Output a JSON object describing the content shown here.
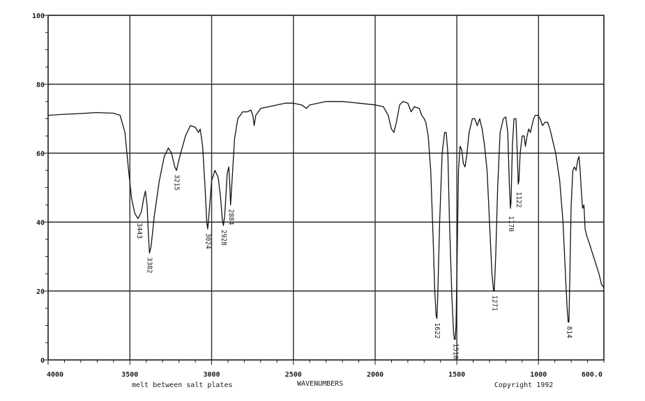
{
  "chart_data": {
    "type": "line",
    "title": "",
    "xlabel": "WAVENUMBERS",
    "ylabel": "",
    "xlim": [
      4000,
      600
    ],
    "ylim": [
      0,
      100
    ],
    "x_ticks": [
      4000,
      3500,
      3000,
      2500,
      2000,
      1500,
      1000,
      600
    ],
    "x_tick_labels": [
      "4000",
      "3500",
      "3000",
      "2500",
      "2000",
      "1500",
      "1000",
      "600.0"
    ],
    "y_ticks": [
      0,
      20,
      40,
      60,
      80,
      100
    ],
    "y_tick_labels": [
      "0",
      "20",
      "40",
      "60",
      "80",
      "100"
    ],
    "grid": true,
    "sample_note": "melt between salt plates",
    "copyright": "Copyright 1992",
    "peak_labels": [
      {
        "x": 3443,
        "y": 41,
        "text": "3443"
      },
      {
        "x": 3382,
        "y": 31,
        "text": "3382"
      },
      {
        "x": 3215,
        "y": 55,
        "text": "3215"
      },
      {
        "x": 3024,
        "y": 38,
        "text": "3024"
      },
      {
        "x": 2928,
        "y": 39,
        "text": "2928"
      },
      {
        "x": 2884,
        "y": 45,
        "text": "2884"
      },
      {
        "x": 1622,
        "y": 12,
        "text": "1622"
      },
      {
        "x": 1510,
        "y": 6,
        "text": "1510"
      },
      {
        "x": 1271,
        "y": 20,
        "text": "1271"
      },
      {
        "x": 1170,
        "y": 43,
        "text": "1170"
      },
      {
        "x": 1122,
        "y": 50,
        "text": "1122"
      },
      {
        "x": 814,
        "y": 11,
        "text": "814"
      }
    ],
    "series": [
      {
        "values": [
          [
            4000,
            71
          ],
          [
            3900,
            71.3
          ],
          [
            3800,
            71.5
          ],
          [
            3700,
            71.8
          ],
          [
            3600,
            71.6
          ],
          [
            3560,
            71
          ],
          [
            3530,
            66
          ],
          [
            3510,
            56
          ],
          [
            3490,
            47
          ],
          [
            3470,
            42.5
          ],
          [
            3450,
            41
          ],
          [
            3430,
            43
          ],
          [
            3415,
            47
          ],
          [
            3405,
            49
          ],
          [
            3395,
            45
          ],
          [
            3385,
            35
          ],
          [
            3380,
            31
          ],
          [
            3370,
            33
          ],
          [
            3350,
            42
          ],
          [
            3320,
            52
          ],
          [
            3290,
            59
          ],
          [
            3265,
            61.5
          ],
          [
            3245,
            60
          ],
          [
            3225,
            56
          ],
          [
            3215,
            55
          ],
          [
            3195,
            59
          ],
          [
            3160,
            65
          ],
          [
            3130,
            68
          ],
          [
            3100,
            67.5
          ],
          [
            3080,
            66
          ],
          [
            3070,
            67
          ],
          [
            3055,
            62
          ],
          [
            3040,
            50
          ],
          [
            3030,
            40
          ],
          [
            3024,
            38
          ],
          [
            3015,
            43
          ],
          [
            3000,
            52
          ],
          [
            2980,
            55
          ],
          [
            2960,
            53
          ],
          [
            2945,
            47
          ],
          [
            2935,
            41
          ],
          [
            2928,
            39
          ],
          [
            2920,
            42
          ],
          [
            2905,
            54
          ],
          [
            2895,
            56
          ],
          [
            2890,
            52
          ],
          [
            2884,
            45
          ],
          [
            2875,
            52
          ],
          [
            2860,
            64
          ],
          [
            2840,
            70
          ],
          [
            2810,
            72
          ],
          [
            2780,
            72
          ],
          [
            2760,
            72.5
          ],
          [
            2748,
            71
          ],
          [
            2740,
            68
          ],
          [
            2730,
            71
          ],
          [
            2700,
            73
          ],
          [
            2650,
            73.5
          ],
          [
            2600,
            74
          ],
          [
            2550,
            74.5
          ],
          [
            2500,
            74.5
          ],
          [
            2450,
            74
          ],
          [
            2420,
            73
          ],
          [
            2400,
            74
          ],
          [
            2350,
            74.5
          ],
          [
            2300,
            75
          ],
          [
            2200,
            75
          ],
          [
            2100,
            74.5
          ],
          [
            2000,
            74
          ],
          [
            1950,
            73.5
          ],
          [
            1920,
            71
          ],
          [
            1900,
            67
          ],
          [
            1885,
            66
          ],
          [
            1870,
            69
          ],
          [
            1850,
            74
          ],
          [
            1830,
            75
          ],
          [
            1800,
            74.5
          ],
          [
            1780,
            72
          ],
          [
            1760,
            73.5
          ],
          [
            1730,
            73
          ],
          [
            1715,
            71
          ],
          [
            1700,
            70
          ],
          [
            1690,
            69
          ],
          [
            1675,
            65
          ],
          [
            1660,
            55
          ],
          [
            1645,
            35
          ],
          [
            1635,
            20
          ],
          [
            1627,
            13
          ],
          [
            1622,
            12
          ],
          [
            1617,
            18
          ],
          [
            1605,
            40
          ],
          [
            1590,
            60
          ],
          [
            1575,
            66
          ],
          [
            1565,
            66
          ],
          [
            1555,
            60
          ],
          [
            1545,
            40
          ],
          [
            1530,
            18
          ],
          [
            1520,
            8
          ],
          [
            1515,
            6
          ],
          [
            1510,
            6
          ],
          [
            1505,
            10
          ],
          [
            1498,
            30
          ],
          [
            1490,
            55
          ],
          [
            1480,
            62
          ],
          [
            1470,
            61
          ],
          [
            1460,
            57
          ],
          [
            1450,
            56
          ],
          [
            1440,
            59
          ],
          [
            1425,
            66
          ],
          [
            1405,
            70
          ],
          [
            1390,
            70
          ],
          [
            1375,
            68
          ],
          [
            1360,
            70
          ],
          [
            1345,
            67
          ],
          [
            1330,
            62
          ],
          [
            1315,
            55
          ],
          [
            1300,
            40
          ],
          [
            1285,
            25
          ],
          [
            1275,
            20
          ],
          [
            1271,
            20
          ],
          [
            1262,
            30
          ],
          [
            1250,
            50
          ],
          [
            1235,
            66
          ],
          [
            1215,
            70
          ],
          [
            1200,
            70.5
          ],
          [
            1188,
            66
          ],
          [
            1178,
            50
          ],
          [
            1172,
            44
          ],
          [
            1168,
            46
          ],
          [
            1160,
            62
          ],
          [
            1150,
            70
          ],
          [
            1138,
            70
          ],
          [
            1130,
            60
          ],
          [
            1124,
            51
          ],
          [
            1120,
            52
          ],
          [
            1112,
            60
          ],
          [
            1100,
            65
          ],
          [
            1088,
            65
          ],
          [
            1080,
            62
          ],
          [
            1070,
            65
          ],
          [
            1060,
            67
          ],
          [
            1050,
            66
          ],
          [
            1040,
            68
          ],
          [
            1030,
            70
          ],
          [
            1020,
            71
          ],
          [
            1005,
            71
          ],
          [
            990,
            70
          ],
          [
            975,
            68
          ],
          [
            960,
            69
          ],
          [
            945,
            69
          ],
          [
            930,
            67
          ],
          [
            915,
            64
          ],
          [
            895,
            60
          ],
          [
            870,
            52
          ],
          [
            850,
            40
          ],
          [
            835,
            25
          ],
          [
            825,
            15
          ],
          [
            818,
            11
          ],
          [
            814,
            11
          ],
          [
            809,
            22
          ],
          [
            800,
            45
          ],
          [
            790,
            55
          ],
          [
            780,
            56
          ],
          [
            770,
            55
          ],
          [
            760,
            58
          ],
          [
            752,
            59
          ],
          [
            745,
            55
          ],
          [
            738,
            49
          ],
          [
            730,
            44
          ],
          [
            722,
            45
          ],
          [
            715,
            38
          ],
          [
            705,
            36
          ],
          [
            690,
            34
          ],
          [
            670,
            31
          ],
          [
            650,
            28
          ],
          [
            630,
            25
          ],
          [
            615,
            22
          ],
          [
            600,
            21
          ]
        ]
      }
    ]
  }
}
